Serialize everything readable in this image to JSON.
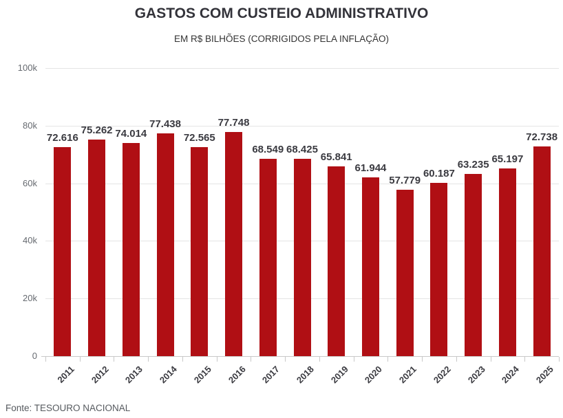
{
  "header": {
    "title": "GASTOS COM CUSTEIO ADMINISTRATIVO",
    "subtitle": "EM R$ BILHÕES (CORRIGIDOS PELA INFLAÇÃO)"
  },
  "footer": {
    "source": "Fonte: TESOURO NACIONAL"
  },
  "chart_data": {
    "type": "bar",
    "title": "GASTOS COM CUSTEIO ADMINISTRATIVO",
    "subtitle": "EM R$ BILHÕES (CORRIGIDOS PELA INFLAÇÃO)",
    "categories": [
      "2011",
      "2012",
      "2013",
      "2014",
      "2015",
      "2016",
      "2017",
      "2018",
      "2019",
      "2020",
      "2021",
      "2022",
      "2023",
      "2024",
      "2025"
    ],
    "values": [
      72616,
      75262,
      74014,
      77438,
      72565,
      77748,
      68549,
      68425,
      65841,
      61944,
      57779,
      60187,
      63235,
      65197,
      72738
    ],
    "value_labels": [
      "72.616",
      "75.262",
      "74.014",
      "77.438",
      "72.565",
      "77.748",
      "68.549",
      "68.425",
      "65.841",
      "61.944",
      "57.779",
      "60.187",
      "63.235",
      "65.197",
      "72.738"
    ],
    "xlabel": "",
    "ylabel": "",
    "ylim": [
      0,
      100000
    ],
    "y_ticks": [
      {
        "value": 0,
        "label": "0"
      },
      {
        "value": 20000,
        "label": "20k"
      },
      {
        "value": 40000,
        "label": "40k"
      },
      {
        "value": 60000,
        "label": "60k"
      },
      {
        "value": 80000,
        "label": "80k"
      },
      {
        "value": 100000,
        "label": "100k"
      }
    ],
    "grid": true,
    "legend": false,
    "bar_color": "#B00F14",
    "source": "Fonte: TESOURO NACIONAL"
  }
}
